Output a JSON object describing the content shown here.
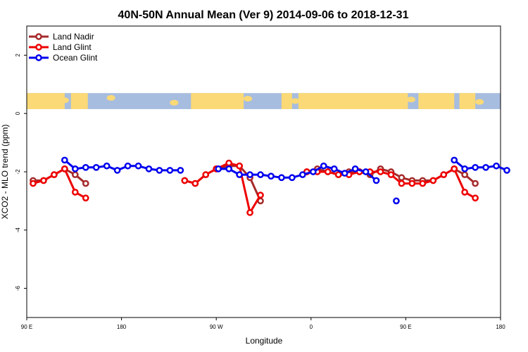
{
  "chart_data": {
    "type": "line",
    "title": "40N-50N Annual Mean (Ver 9)   2014-09-06 to 2018-12-31",
    "xlabel": "Longitude",
    "ylabel": "XCO2 - MLO trend (ppm)",
    "xlim": [
      90,
      540
    ],
    "ylim": [
      -7,
      3
    ],
    "x_ticks": [
      {
        "value": 90,
        "label": "90 E"
      },
      {
        "value": 180,
        "label": "180"
      },
      {
        "value": 270,
        "label": "90 W"
      },
      {
        "value": 360,
        "label": "0"
      },
      {
        "value": 450,
        "label": "90 E"
      },
      {
        "value": 540,
        "label": "180"
      }
    ],
    "y_ticks": [
      {
        "value": 2,
        "label": "2"
      },
      {
        "value": 0,
        "label": "0"
      },
      {
        "value": -2,
        "label": "-2"
      },
      {
        "value": -4,
        "label": "-4"
      },
      {
        "value": -6,
        "label": "-6"
      }
    ],
    "legend_position": "top-left",
    "map_strip": {
      "ymin": 0.15,
      "ymax": 0.7,
      "ocean_color": "#a7bddf",
      "land_color": "#fbd976"
    },
    "series": [
      {
        "name": "Land Nadir",
        "color": "#a52a2a",
        "segments": [
          [
            [
              96,
              -2.3
            ],
            [
              106,
              -2.3
            ],
            [
              116,
              -2.1
            ],
            [
              126,
              -1.9
            ],
            [
              136,
              -2.1
            ],
            [
              146,
              -2.4
            ]
          ],
          [
            [
              240,
              -2.3
            ],
            [
              250,
              -2.4
            ],
            [
              260,
              -2.1
            ],
            [
              270,
              -1.9
            ],
            [
              282,
              -1.8
            ],
            [
              292,
              -1.8
            ],
            [
              302,
              -2.2
            ],
            [
              312,
              -3.0
            ]
          ],
          [
            [
              356,
              -2.0
            ],
            [
              366,
              -1.9
            ],
            [
              376,
              -2.0
            ],
            [
              386,
              -2.1
            ],
            [
              396,
              -2.0
            ],
            [
              406,
              -2.0
            ],
            [
              416,
              -2.1
            ],
            [
              426,
              -1.9
            ],
            [
              436,
              -2.0
            ],
            [
              446,
              -2.2
            ],
            [
              456,
              -2.3
            ],
            [
              466,
              -2.3
            ],
            [
              476,
              -2.3
            ],
            [
              486,
              -2.1
            ],
            [
              496,
              -1.9
            ],
            [
              506,
              -2.1
            ],
            [
              516,
              -2.4
            ]
          ]
        ]
      },
      {
        "name": "Land Glint",
        "color": "#ee0000",
        "segments": [
          [
            [
              96,
              -2.4
            ],
            [
              106,
              -2.3
            ],
            [
              116,
              -2.1
            ],
            [
              126,
              -1.9
            ],
            [
              136,
              -2.7
            ],
            [
              146,
              -2.9
            ]
          ],
          [
            [
              240,
              -2.3
            ],
            [
              250,
              -2.4
            ],
            [
              260,
              -2.1
            ],
            [
              270,
              -1.9
            ],
            [
              282,
              -1.7
            ],
            [
              292,
              -1.8
            ],
            [
              302,
              -3.4
            ],
            [
              312,
              -2.8
            ]
          ],
          [
            [
              356,
              -2.0
            ],
            [
              366,
              -2.0
            ],
            [
              376,
              -2.0
            ],
            [
              386,
              -2.1
            ],
            [
              396,
              -2.1
            ],
            [
              406,
              -2.0
            ],
            [
              416,
              -2.0
            ],
            [
              426,
              -2.0
            ],
            [
              436,
              -2.1
            ],
            [
              446,
              -2.4
            ],
            [
              456,
              -2.4
            ],
            [
              466,
              -2.4
            ],
            [
              476,
              -2.3
            ],
            [
              486,
              -2.1
            ],
            [
              496,
              -1.9
            ],
            [
              506,
              -2.7
            ],
            [
              516,
              -2.9
            ]
          ]
        ]
      },
      {
        "name": "Ocean Glint",
        "color": "#0000ee",
        "segments": [
          [
            [
              126,
              -1.6
            ],
            [
              136,
              -1.9
            ],
            [
              146,
              -1.85
            ],
            [
              156,
              -1.85
            ],
            [
              166,
              -1.8
            ],
            [
              176,
              -1.95
            ],
            [
              186,
              -1.8
            ],
            [
              196,
              -1.8
            ],
            [
              206,
              -1.9
            ],
            [
              216,
              -1.95
            ],
            [
              226,
              -1.95
            ],
            [
              236,
              -1.95
            ]
          ],
          [
            [
              272,
              -1.9
            ],
            [
              282,
              -1.9
            ],
            [
              292,
              -2.1
            ],
            [
              302,
              -2.1
            ],
            [
              312,
              -2.1
            ],
            [
              322,
              -2.15
            ],
            [
              332,
              -2.2
            ],
            [
              342,
              -2.2
            ],
            [
              352,
              -2.1
            ],
            [
              362,
              -2.0
            ],
            [
              372,
              -1.8
            ],
            [
              382,
              -1.9
            ],
            [
              392,
              -2.05
            ],
            [
              402,
              -1.9
            ],
            [
              412,
              -2.0
            ],
            [
              422,
              -2.3
            ]
          ],
          [
            [
              441,
              -3.0
            ]
          ],
          [
            [
              496,
              -1.6
            ],
            [
              506,
              -1.9
            ],
            [
              516,
              -1.85
            ],
            [
              526,
              -1.85
            ],
            [
              536,
              -1.8
            ],
            [
              546,
              -1.95
            ]
          ]
        ]
      }
    ]
  }
}
